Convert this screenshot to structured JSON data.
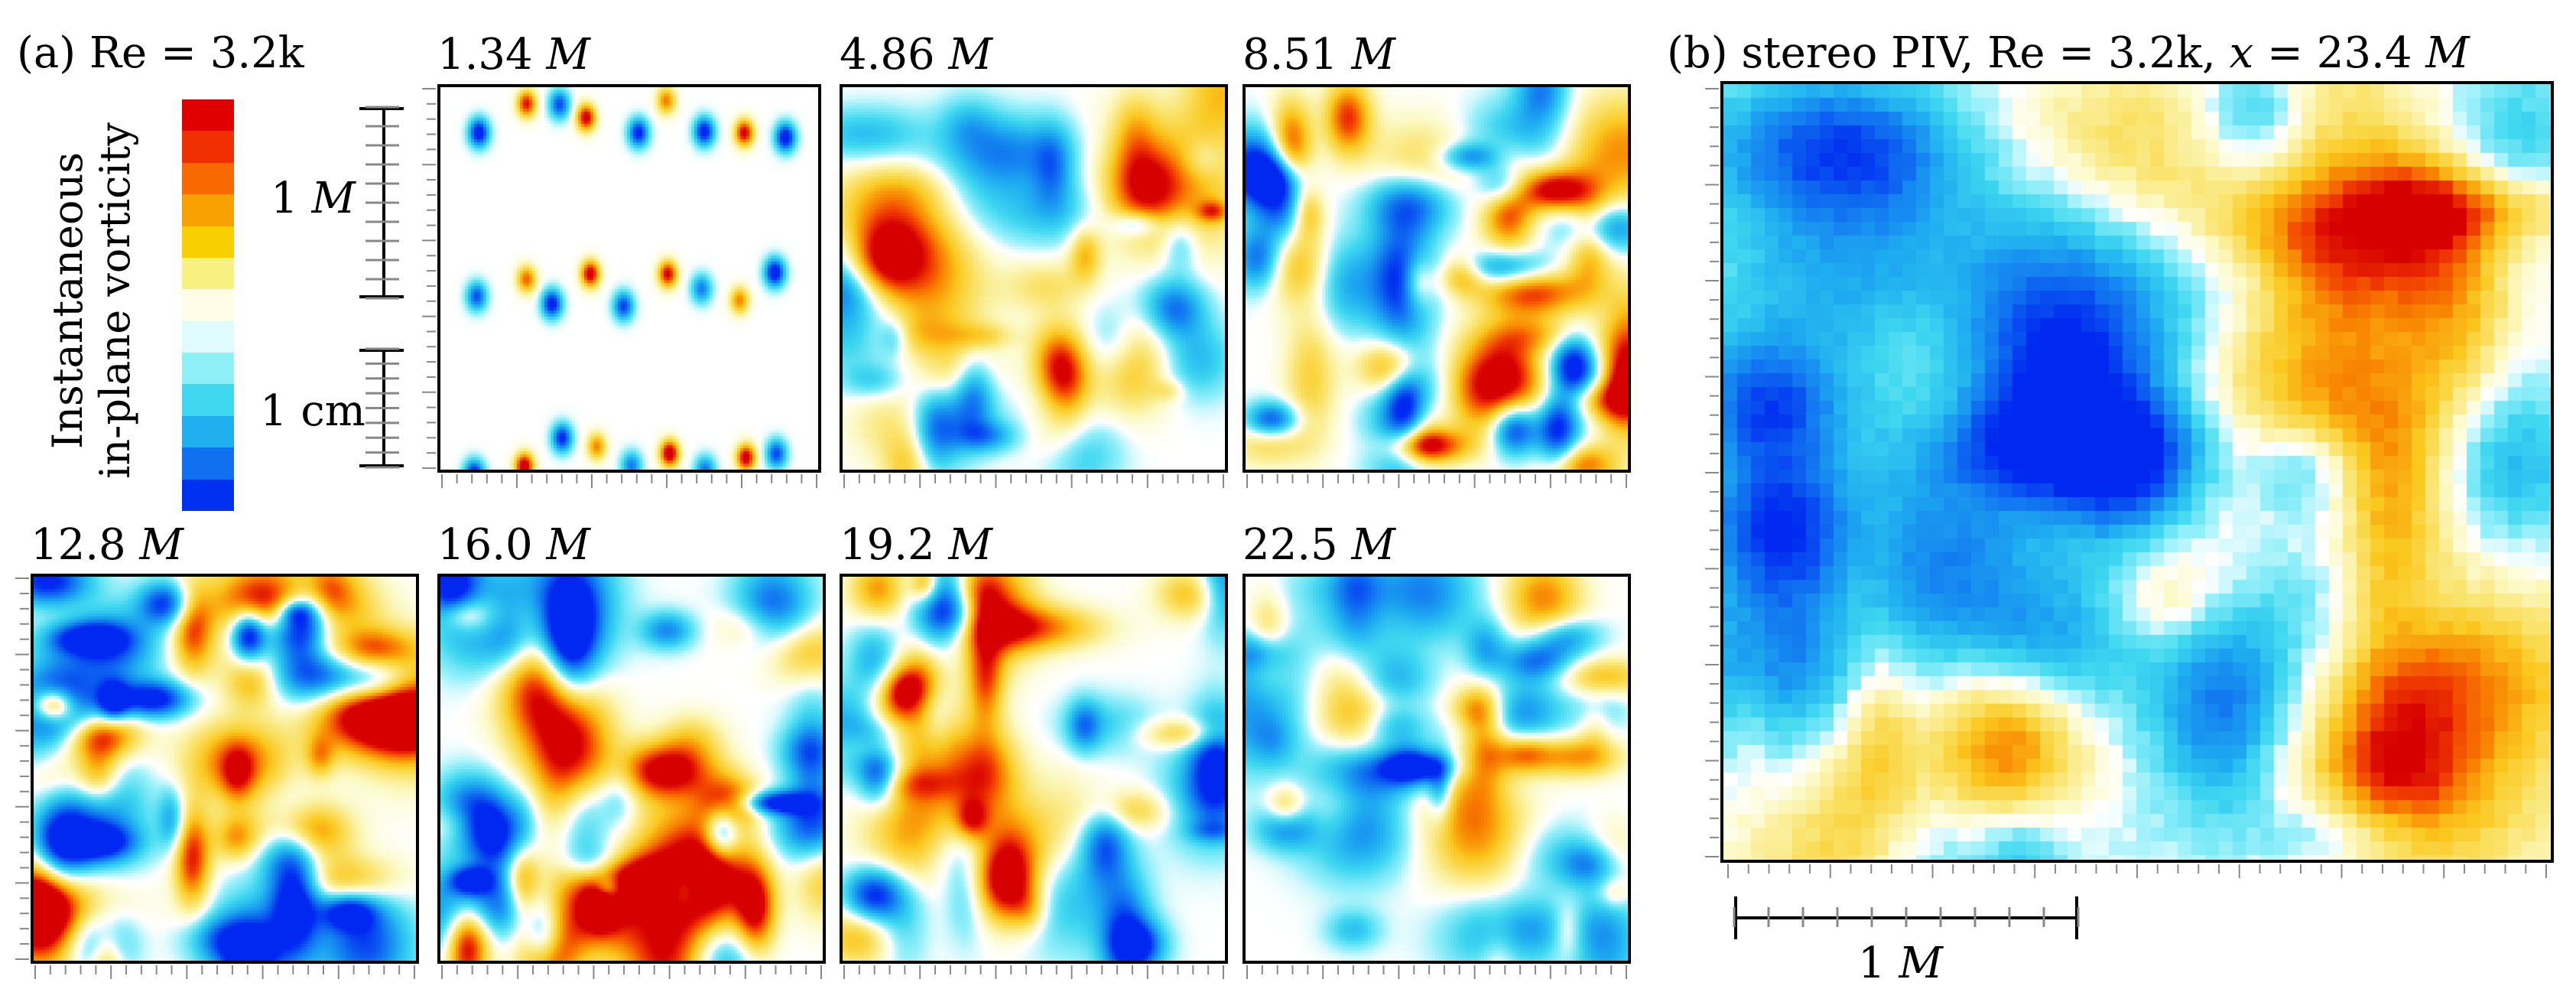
{
  "panel_a": {
    "label": "(a) Re = 3.2k",
    "colorbar_title_line1": "Instantaneous",
    "colorbar_title_line2": "in-plane vorticity",
    "scale_1M": "1",
    "scale_1M_unit": "M",
    "scale_1cm": "1 cm",
    "colorbar_colors": [
      "#e00000",
      "#f03000",
      "#f86a00",
      "#f8a000",
      "#f8d000",
      "#f8f080",
      "#fffde8",
      "#e0fbff",
      "#90f0f8",
      "#40d8f0",
      "#20b0f0",
      "#1070f0",
      "#0030f0"
    ],
    "snapshots": [
      {
        "value": "1.34",
        "unit": "M"
      },
      {
        "value": "4.86",
        "unit": "M"
      },
      {
        "value": "8.51",
        "unit": "M"
      },
      {
        "value": "12.8",
        "unit": "M"
      },
      {
        "value": "16.0",
        "unit": "M"
      },
      {
        "value": "19.2",
        "unit": "M"
      },
      {
        "value": "22.5",
        "unit": "M"
      }
    ]
  },
  "panel_b": {
    "label_prefix": "(b) stereo PIV, Re = 3.2k,",
    "label_x": "x",
    "label_suffix": "= 23.4",
    "label_unit": "M",
    "scale_1M": "1",
    "scale_1M_unit": "M"
  }
}
